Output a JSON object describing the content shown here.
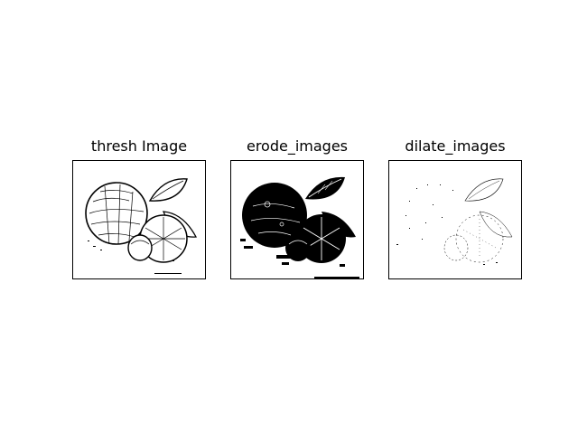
{
  "panels": [
    {
      "title": "thresh Image",
      "style": "thresh"
    },
    {
      "title": "erode_images",
      "style": "erode"
    },
    {
      "title": "dilate_images",
      "style": "dilate"
    }
  ],
  "colors": {
    "background": "#ffffff",
    "ink": "#000000",
    "axes_border": "#000000"
  }
}
